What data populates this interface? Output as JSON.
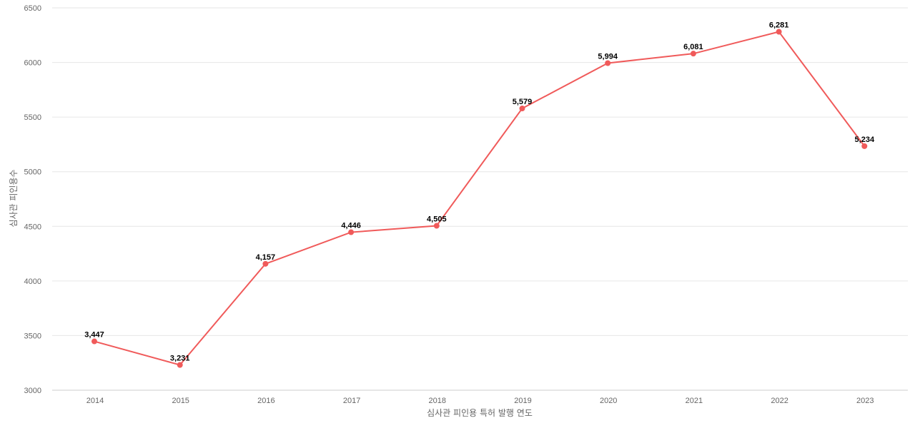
{
  "chart_data": {
    "type": "line",
    "title": "",
    "xlabel": "심사관 피인용 특허 발행 연도",
    "ylabel": "심사관 피인용수",
    "categories": [
      "2014",
      "2015",
      "2016",
      "2017",
      "2018",
      "2019",
      "2020",
      "2021",
      "2022",
      "2023"
    ],
    "series": [
      {
        "values": [
          3447,
          3231,
          4157,
          4446,
          4505,
          5579,
          5994,
          6081,
          6281,
          5234
        ],
        "data_labels": [
          "3,447",
          "3,231",
          "4,157",
          "4,446",
          "4,505",
          "5,579",
          "5,994",
          "6,081",
          "6,281",
          "5,234"
        ],
        "color": "#f05a5a"
      }
    ],
    "ylim": [
      3000,
      6500
    ],
    "yticks": [
      "3000",
      "3500",
      "4000",
      "4500",
      "5000",
      "5500",
      "6000",
      "6500"
    ],
    "grid": true,
    "legend": "none"
  }
}
